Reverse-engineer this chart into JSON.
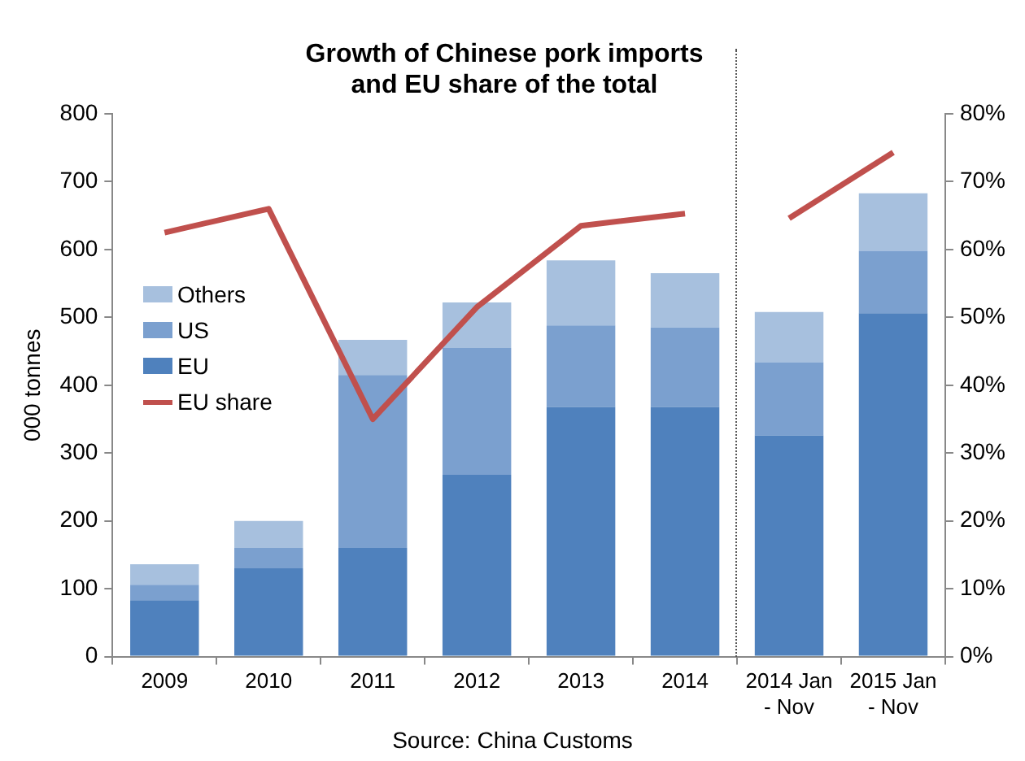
{
  "chart_data": {
    "type": "bar",
    "title": "Growth of Chinese pork imports\nand EU share of the total",
    "ylabel": "000 tonnes",
    "annotations": [
      "Source: China Customs"
    ],
    "categories": [
      "2009",
      "2010",
      "2011",
      "2012",
      "2013",
      "2014",
      "2014 Jan\n- Nov",
      "2015 Jan\n- Nov"
    ],
    "stacked": true,
    "grid": false,
    "legend": "left",
    "series": [
      {
        "name": "EU",
        "color": "#4f81bd",
        "values": [
          83,
          130,
          160,
          268,
          368,
          368,
          326,
          506
        ]
      },
      {
        "name": "US",
        "color": "#7ba0cf",
        "values": [
          23,
          30,
          255,
          187,
          120,
          117,
          108,
          92
        ]
      },
      {
        "name": "Others",
        "color": "#a7c0de",
        "values": [
          30,
          40,
          52,
          67,
          96,
          80,
          74,
          85
        ]
      },
      {
        "name": "EU share",
        "type": "line",
        "axis": "y2",
        "color": "#c0504d",
        "values": [
          62.5,
          66,
          35,
          51.5,
          63.5,
          65.3,
          null,
          null
        ]
      },
      {
        "type": "line",
        "axis": "y2",
        "color": "#c0504d",
        "values": [
          null,
          null,
          null,
          null,
          null,
          null,
          64.6,
          74.3
        ]
      }
    ],
    "ylim": [
      0,
      800
    ],
    "yticks": [
      0,
      100,
      200,
      300,
      400,
      500,
      600,
      700,
      800
    ],
    "y2lim": [
      0,
      80
    ],
    "y2ticks": [
      {
        "value": 0,
        "label": "0%"
      },
      {
        "value": 10,
        "label": "10%"
      },
      {
        "value": 20,
        "label": "20%"
      },
      {
        "value": 30,
        "label": "30%"
      },
      {
        "value": 40,
        "label": "40%"
      },
      {
        "value": 50,
        "label": "50%"
      },
      {
        "value": 60,
        "label": "60%"
      },
      {
        "value": 70,
        "label": "70%"
      },
      {
        "value": 80,
        "label": "80%"
      }
    ]
  }
}
